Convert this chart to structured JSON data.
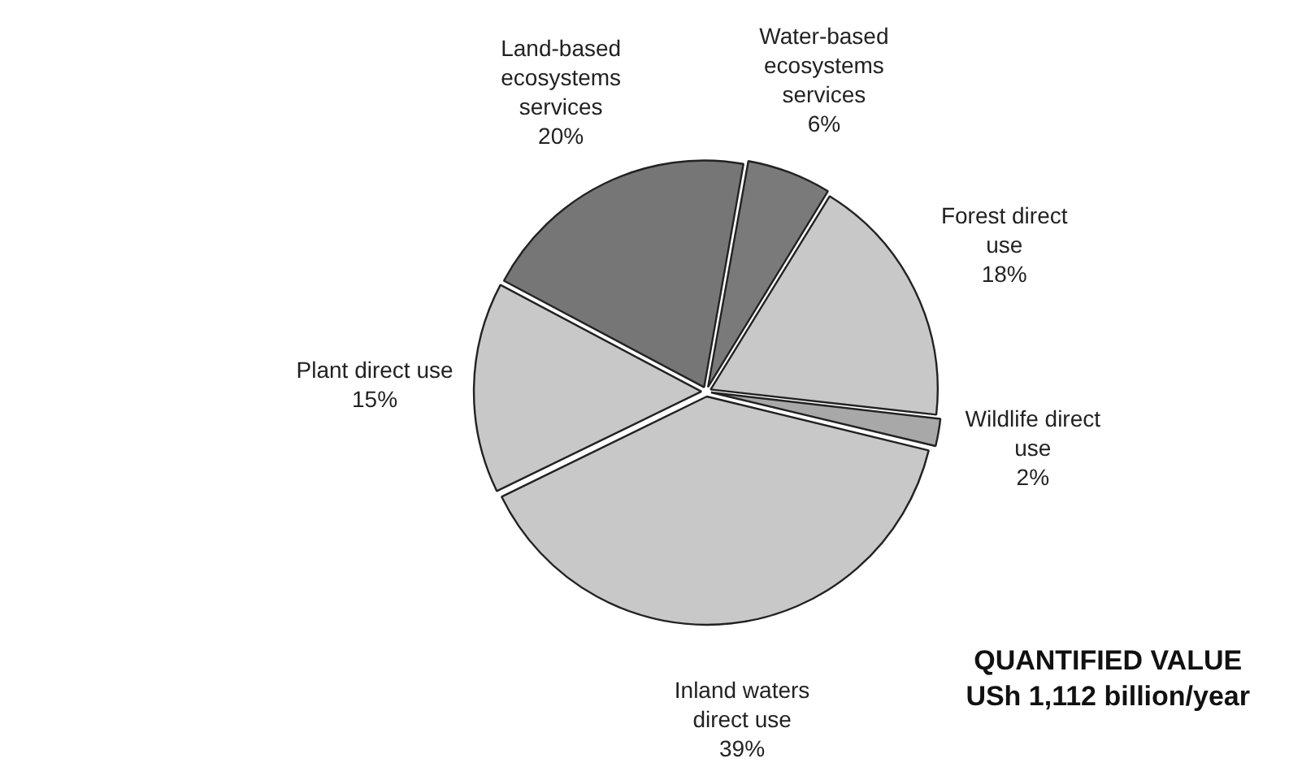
{
  "chart_data": {
    "type": "pie",
    "categories": [
      "Water-based ecosystems services",
      "Forest direct use",
      "Wildlife direct use",
      "Inland waters direct use",
      "Plant direct use",
      "Land-based ecosystems services"
    ],
    "values": [
      6,
      18,
      2,
      39,
      15,
      20
    ],
    "value_labels": [
      "6%",
      "18%",
      "2%",
      "39%",
      "15%",
      "20%"
    ],
    "colors": [
      "#7a7a7a",
      "#c8c8c8",
      "#a8a8a8",
      "#c8c8c8",
      "#c8c8c8",
      "#767676"
    ],
    "legend": false,
    "annotations": [
      "QUANTIFIED VALUE",
      "USh 1,112 billion/year"
    ]
  }
}
